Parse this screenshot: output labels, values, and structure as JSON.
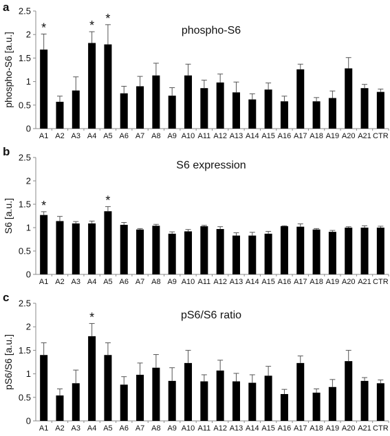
{
  "figure": {
    "bar_color": "#000000",
    "axis_color": "#888888"
  },
  "chart_data": [
    {
      "type": "bar",
      "panel_label": "a",
      "title": "phospho-S6",
      "ylabel": "phospho-S6 [a.u.]",
      "ylim": [
        0,
        2.5
      ],
      "yticks": [
        "0",
        "0.5",
        "1",
        "1.5",
        "2",
        "2.5"
      ],
      "categories": [
        "A1",
        "A2",
        "A3",
        "A4",
        "A5",
        "A6",
        "A7",
        "A8",
        "A9",
        "A10",
        "A11",
        "A12",
        "A13",
        "A14",
        "A15",
        "A16",
        "A17",
        "A18",
        "A19",
        "A20",
        "A21",
        "CTR"
      ],
      "values": [
        1.68,
        0.57,
        0.81,
        1.82,
        1.79,
        0.75,
        0.9,
        1.13,
        0.7,
        1.13,
        0.86,
        0.98,
        0.77,
        0.62,
        0.83,
        0.58,
        1.26,
        0.58,
        0.65,
        1.28,
        0.86,
        0.78
      ],
      "errors": [
        0.33,
        0.12,
        0.29,
        0.24,
        0.42,
        0.15,
        0.21,
        0.26,
        0.17,
        0.24,
        0.17,
        0.18,
        0.22,
        0.12,
        0.14,
        0.11,
        0.11,
        0.08,
        0.15,
        0.23,
        0.08,
        0.06
      ],
      "significance": [
        "*",
        "",
        "",
        "*",
        "*",
        "",
        "",
        "",
        "",
        "",
        "",
        "",
        "",
        "",
        "",
        "",
        "",
        "",
        "",
        "",
        "",
        ""
      ]
    },
    {
      "type": "bar",
      "panel_label": "b",
      "title": "S6 expression",
      "ylabel": "S6 [a.u.]",
      "ylim": [
        0,
        2.5
      ],
      "yticks": [
        "0",
        "0.5",
        "1",
        "1.5",
        "2",
        "2.5"
      ],
      "categories": [
        "A1",
        "A2",
        "A3",
        "A4",
        "A5",
        "A6",
        "A7",
        "A8",
        "A9",
        "A10",
        "A11",
        "A12",
        "A13",
        "A14",
        "A15",
        "A16",
        "A17",
        "A18",
        "A19",
        "A20",
        "A21",
        "CTR"
      ],
      "values": [
        1.27,
        1.14,
        1.09,
        1.09,
        1.35,
        1.06,
        0.96,
        1.04,
        0.87,
        0.92,
        1.03,
        0.97,
        0.83,
        0.83,
        0.87,
        1.03,
        1.02,
        0.96,
        0.91,
        1.0,
        1.0,
        1.0
      ],
      "errors": [
        0.07,
        0.1,
        0.04,
        0.05,
        0.1,
        0.05,
        0.02,
        0.03,
        0.04,
        0.04,
        0.02,
        0.05,
        0.06,
        0.07,
        0.05,
        0.01,
        0.06,
        0.02,
        0.03,
        0.02,
        0.04,
        0.03
      ],
      "significance": [
        "*",
        "",
        "",
        "",
        "*",
        "",
        "",
        "",
        "",
        "",
        "",
        "",
        "",
        "",
        "",
        "",
        "",
        "",
        "",
        "",
        "",
        ""
      ]
    },
    {
      "type": "bar",
      "panel_label": "c",
      "title": "pS6/S6 ratio",
      "ylabel": "pS6/S6 [a.u.]",
      "ylim": [
        0,
        2.5
      ],
      "yticks": [
        "0",
        "0.5",
        "1",
        "1.5",
        "2",
        "2.5"
      ],
      "categories": [
        "A1",
        "A2",
        "A3",
        "A4",
        "A5",
        "A6",
        "A7",
        "A8",
        "A9",
        "A10",
        "A11",
        "A12",
        "A13",
        "A14",
        "A15",
        "A16",
        "A17",
        "A18",
        "A19",
        "A20",
        "A21",
        "CTR"
      ],
      "values": [
        1.4,
        0.54,
        0.8,
        1.8,
        1.4,
        0.77,
        0.98,
        1.13,
        0.85,
        1.23,
        0.84,
        1.07,
        0.84,
        0.81,
        0.96,
        0.57,
        1.23,
        0.6,
        0.72,
        1.27,
        0.85,
        0.8
      ],
      "errors": [
        0.26,
        0.14,
        0.28,
        0.27,
        0.26,
        0.17,
        0.25,
        0.28,
        0.28,
        0.27,
        0.14,
        0.22,
        0.17,
        0.17,
        0.2,
        0.1,
        0.15,
        0.08,
        0.16,
        0.23,
        0.07,
        0.07
      ],
      "significance": [
        "",
        "",
        "",
        "*",
        "",
        "",
        "",
        "",
        "",
        "",
        "",
        "",
        "",
        "",
        "",
        "",
        "",
        "",
        "",
        "",
        "",
        ""
      ]
    }
  ]
}
